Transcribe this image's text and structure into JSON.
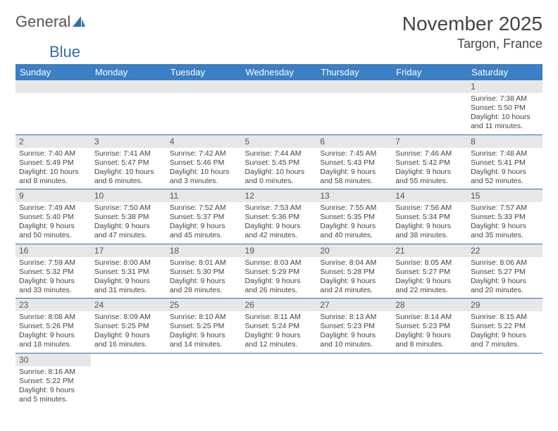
{
  "logo": {
    "text1": "General",
    "text2": "Blue"
  },
  "title": "November 2025",
  "location": "Targon, France",
  "colors": {
    "header_bg": "#3b7fc4",
    "header_text": "#ffffff",
    "daynum_bg": "#e7e7e7",
    "border": "#2f6fb0",
    "text": "#444444"
  },
  "weekdays": [
    "Sunday",
    "Monday",
    "Tuesday",
    "Wednesday",
    "Thursday",
    "Friday",
    "Saturday"
  ],
  "weeks": [
    [
      null,
      null,
      null,
      null,
      null,
      null,
      {
        "n": "1",
        "sr": "Sunrise: 7:38 AM",
        "ss": "Sunset: 5:50 PM",
        "dl1": "Daylight: 10 hours",
        "dl2": "and 11 minutes."
      }
    ],
    [
      {
        "n": "2",
        "sr": "Sunrise: 7:40 AM",
        "ss": "Sunset: 5:49 PM",
        "dl1": "Daylight: 10 hours",
        "dl2": "and 8 minutes."
      },
      {
        "n": "3",
        "sr": "Sunrise: 7:41 AM",
        "ss": "Sunset: 5:47 PM",
        "dl1": "Daylight: 10 hours",
        "dl2": "and 6 minutes."
      },
      {
        "n": "4",
        "sr": "Sunrise: 7:42 AM",
        "ss": "Sunset: 5:46 PM",
        "dl1": "Daylight: 10 hours",
        "dl2": "and 3 minutes."
      },
      {
        "n": "5",
        "sr": "Sunrise: 7:44 AM",
        "ss": "Sunset: 5:45 PM",
        "dl1": "Daylight: 10 hours",
        "dl2": "and 0 minutes."
      },
      {
        "n": "6",
        "sr": "Sunrise: 7:45 AM",
        "ss": "Sunset: 5:43 PM",
        "dl1": "Daylight: 9 hours",
        "dl2": "and 58 minutes."
      },
      {
        "n": "7",
        "sr": "Sunrise: 7:46 AM",
        "ss": "Sunset: 5:42 PM",
        "dl1": "Daylight: 9 hours",
        "dl2": "and 55 minutes."
      },
      {
        "n": "8",
        "sr": "Sunrise: 7:48 AM",
        "ss": "Sunset: 5:41 PM",
        "dl1": "Daylight: 9 hours",
        "dl2": "and 52 minutes."
      }
    ],
    [
      {
        "n": "9",
        "sr": "Sunrise: 7:49 AM",
        "ss": "Sunset: 5:40 PM",
        "dl1": "Daylight: 9 hours",
        "dl2": "and 50 minutes."
      },
      {
        "n": "10",
        "sr": "Sunrise: 7:50 AM",
        "ss": "Sunset: 5:38 PM",
        "dl1": "Daylight: 9 hours",
        "dl2": "and 47 minutes."
      },
      {
        "n": "11",
        "sr": "Sunrise: 7:52 AM",
        "ss": "Sunset: 5:37 PM",
        "dl1": "Daylight: 9 hours",
        "dl2": "and 45 minutes."
      },
      {
        "n": "12",
        "sr": "Sunrise: 7:53 AM",
        "ss": "Sunset: 5:36 PM",
        "dl1": "Daylight: 9 hours",
        "dl2": "and 42 minutes."
      },
      {
        "n": "13",
        "sr": "Sunrise: 7:55 AM",
        "ss": "Sunset: 5:35 PM",
        "dl1": "Daylight: 9 hours",
        "dl2": "and 40 minutes."
      },
      {
        "n": "14",
        "sr": "Sunrise: 7:56 AM",
        "ss": "Sunset: 5:34 PM",
        "dl1": "Daylight: 9 hours",
        "dl2": "and 38 minutes."
      },
      {
        "n": "15",
        "sr": "Sunrise: 7:57 AM",
        "ss": "Sunset: 5:33 PM",
        "dl1": "Daylight: 9 hours",
        "dl2": "and 35 minutes."
      }
    ],
    [
      {
        "n": "16",
        "sr": "Sunrise: 7:59 AM",
        "ss": "Sunset: 5:32 PM",
        "dl1": "Daylight: 9 hours",
        "dl2": "and 33 minutes."
      },
      {
        "n": "17",
        "sr": "Sunrise: 8:00 AM",
        "ss": "Sunset: 5:31 PM",
        "dl1": "Daylight: 9 hours",
        "dl2": "and 31 minutes."
      },
      {
        "n": "18",
        "sr": "Sunrise: 8:01 AM",
        "ss": "Sunset: 5:30 PM",
        "dl1": "Daylight: 9 hours",
        "dl2": "and 28 minutes."
      },
      {
        "n": "19",
        "sr": "Sunrise: 8:03 AM",
        "ss": "Sunset: 5:29 PM",
        "dl1": "Daylight: 9 hours",
        "dl2": "and 26 minutes."
      },
      {
        "n": "20",
        "sr": "Sunrise: 8:04 AM",
        "ss": "Sunset: 5:28 PM",
        "dl1": "Daylight: 9 hours",
        "dl2": "and 24 minutes."
      },
      {
        "n": "21",
        "sr": "Sunrise: 8:05 AM",
        "ss": "Sunset: 5:27 PM",
        "dl1": "Daylight: 9 hours",
        "dl2": "and 22 minutes."
      },
      {
        "n": "22",
        "sr": "Sunrise: 8:06 AM",
        "ss": "Sunset: 5:27 PM",
        "dl1": "Daylight: 9 hours",
        "dl2": "and 20 minutes."
      }
    ],
    [
      {
        "n": "23",
        "sr": "Sunrise: 8:08 AM",
        "ss": "Sunset: 5:26 PM",
        "dl1": "Daylight: 9 hours",
        "dl2": "and 18 minutes."
      },
      {
        "n": "24",
        "sr": "Sunrise: 8:09 AM",
        "ss": "Sunset: 5:25 PM",
        "dl1": "Daylight: 9 hours",
        "dl2": "and 16 minutes."
      },
      {
        "n": "25",
        "sr": "Sunrise: 8:10 AM",
        "ss": "Sunset: 5:25 PM",
        "dl1": "Daylight: 9 hours",
        "dl2": "and 14 minutes."
      },
      {
        "n": "26",
        "sr": "Sunrise: 8:11 AM",
        "ss": "Sunset: 5:24 PM",
        "dl1": "Daylight: 9 hours",
        "dl2": "and 12 minutes."
      },
      {
        "n": "27",
        "sr": "Sunrise: 8:13 AM",
        "ss": "Sunset: 5:23 PM",
        "dl1": "Daylight: 9 hours",
        "dl2": "and 10 minutes."
      },
      {
        "n": "28",
        "sr": "Sunrise: 8:14 AM",
        "ss": "Sunset: 5:23 PM",
        "dl1": "Daylight: 9 hours",
        "dl2": "and 8 minutes."
      },
      {
        "n": "29",
        "sr": "Sunrise: 8:15 AM",
        "ss": "Sunset: 5:22 PM",
        "dl1": "Daylight: 9 hours",
        "dl2": "and 7 minutes."
      }
    ],
    [
      {
        "n": "30",
        "sr": "Sunrise: 8:16 AM",
        "ss": "Sunset: 5:22 PM",
        "dl1": "Daylight: 9 hours",
        "dl2": "and 5 minutes."
      },
      null,
      null,
      null,
      null,
      null,
      null
    ]
  ]
}
